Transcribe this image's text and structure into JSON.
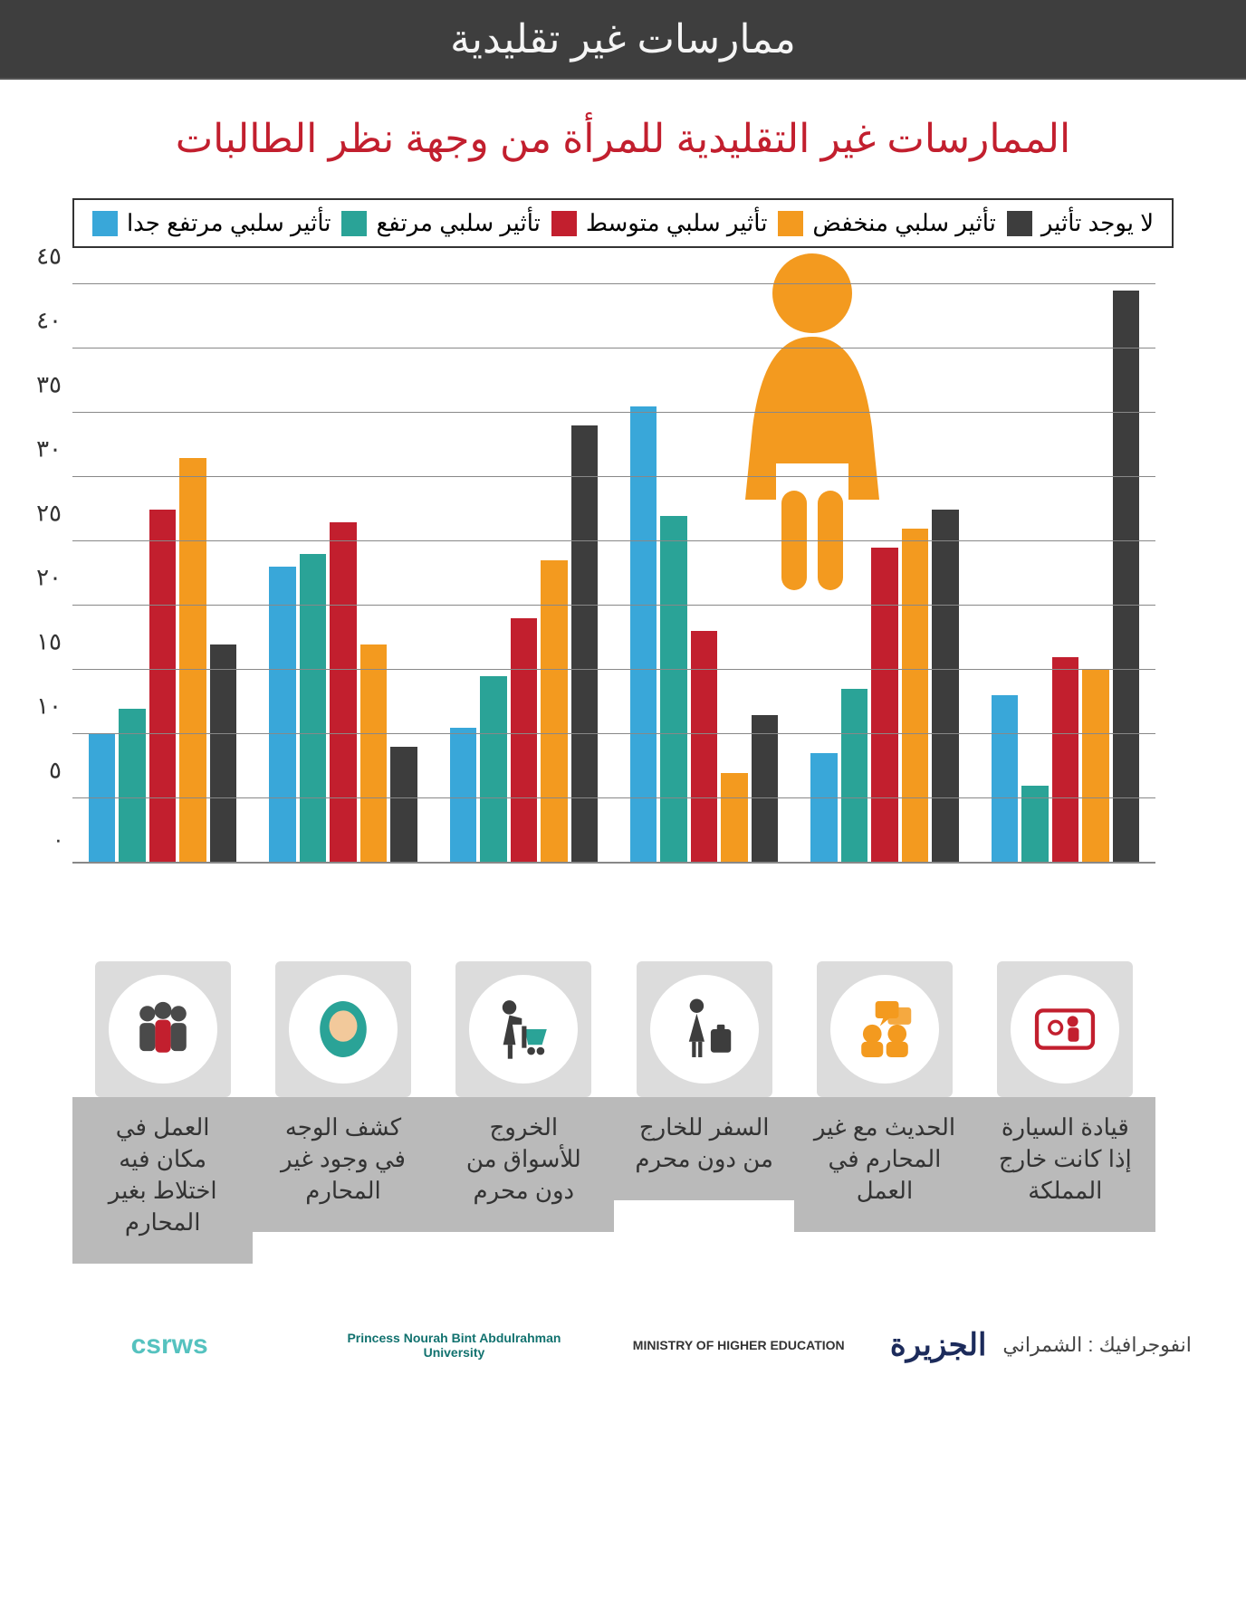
{
  "header": {
    "title": "ممارسات غير تقليدية",
    "bg": "#3e3e3e",
    "color": "#f5f5f5"
  },
  "subtitle": {
    "text": "الممارسات غير التقليدية للمرأة من وجهة نظر الطالبات",
    "color": "#c21f2e"
  },
  "legend_items": [
    {
      "label": "تأثير سلبي مرتفع جدا",
      "color": "#39a7d9"
    },
    {
      "label": "تأثير سلبي مرتفع",
      "color": "#2aa397"
    },
    {
      "label": "تأثير سلبي متوسط",
      "color": "#c21f2e"
    },
    {
      "label": "تأثير سلبي منخفض",
      "color": "#f39a1f"
    },
    {
      "label": "لا يوجد تأثير",
      "color": "#3d3d3d"
    }
  ],
  "chart": {
    "ymax": 45,
    "ytick_step": 5,
    "yticks_labels": [
      "٤٥",
      "٤٠",
      "٣٥",
      "٣٠",
      "٢٥",
      "٢٠",
      "١٥",
      "١٠",
      "٥",
      "."
    ],
    "series_colors": [
      "#39a7d9",
      "#2aa397",
      "#c21f2e",
      "#f39a1f",
      "#3d3d3d"
    ],
    "categories": [
      {
        "label": "العمل في مكان فيه اختلاط بغير المحارم",
        "icon": "people",
        "icon_color": "#4a4a4a",
        "values": [
          10,
          12,
          27.5,
          31.5,
          17
        ]
      },
      {
        "label": "كشف الوجه في وجود غير المحارم",
        "icon": "hijab",
        "icon_color": "#2aa397",
        "values": [
          23,
          24,
          26.5,
          17,
          9
        ]
      },
      {
        "label": "الخروج للأسواق من دون محرم",
        "icon": "shopping",
        "icon_color": "#3d3d3d",
        "values": [
          10.5,
          14.5,
          19,
          23.5,
          34
        ]
      },
      {
        "label": "السفر للخارج من دون محرم",
        "icon": "travel",
        "icon_color": "#3d3d3d",
        "values": [
          35.5,
          27,
          18,
          7,
          11.5
        ]
      },
      {
        "label": "الحديث مع غير المحارم في العمل",
        "icon": "chat",
        "icon_color": "#f39a1f",
        "values": [
          8.5,
          13.5,
          24.5,
          26,
          27.5
        ]
      },
      {
        "label": "قيادة السيارة إذا كانت خارج المملكة",
        "icon": "car",
        "icon_color": "#c21f2e",
        "values": [
          13,
          6,
          16,
          15,
          44.5
        ]
      }
    ],
    "woman_icon_color": "#f39a1f"
  },
  "footer": {
    "credit_label": "انفوجرافيك : الشمراني",
    "logos": [
      {
        "name": "csrws",
        "text": "csrws",
        "color": "#55c2bf"
      },
      {
        "name": "pnu",
        "text": "Princess Nourah Bint Abdulrahman University",
        "color": "#12726f"
      },
      {
        "name": "mohe",
        "text": "MINISTRY OF HIGHER EDUCATION",
        "color": "#333"
      },
      {
        "name": "aljazirah",
        "text": "الجزيرة",
        "color": "#1c2b5b"
      }
    ]
  }
}
